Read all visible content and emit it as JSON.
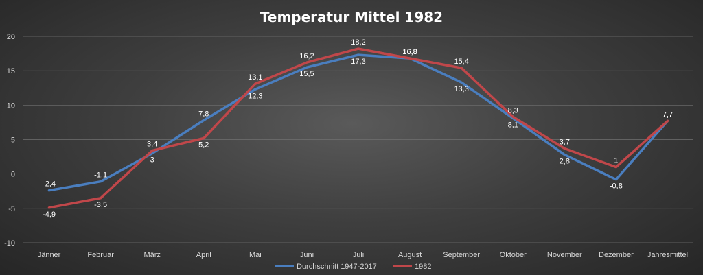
{
  "chart_data": {
    "type": "line",
    "title": "Temperatur Mittel 1982",
    "categories": [
      "Jänner",
      "Februar",
      "März",
      "April",
      "Mai",
      "Juni",
      "Juli",
      "August",
      "September",
      "Oktober",
      "November",
      "Dezember",
      "Jahresmittel"
    ],
    "ylim": [
      -10,
      20
    ],
    "yticks": [
      20,
      15,
      10,
      5,
      0,
      -5,
      -10
    ],
    "grid": true,
    "legend_position": "bottom",
    "series": [
      {
        "name": "Durchschnitt 1947-2017",
        "color": "#4a7ebf",
        "values": [
          -2.4,
          -1.1,
          3,
          7.8,
          12.3,
          15.5,
          17.3,
          16.8,
          13.3,
          8.1,
          2.8,
          -0.8,
          7.7
        ],
        "labels": [
          "-2,4",
          "-1,1",
          "3",
          "7,8",
          "12,3",
          "15,5",
          "17,3",
          "16,8",
          "13,3",
          "8,1",
          "2,8",
          "-0,8",
          "7,7"
        ]
      },
      {
        "name": "1982",
        "color": "#c0474a",
        "values": [
          -4.9,
          -3.5,
          3.4,
          5.2,
          13.1,
          16.2,
          18.2,
          16.8,
          15.4,
          8.3,
          3.7,
          1,
          7.7
        ],
        "labels": [
          "-4,9",
          "-3,5",
          "3,4",
          "5,2",
          "13,1",
          "16,2",
          "18,2",
          "16,8",
          "15,4",
          "8,3",
          "3,7",
          "1",
          "7,7"
        ]
      }
    ]
  }
}
